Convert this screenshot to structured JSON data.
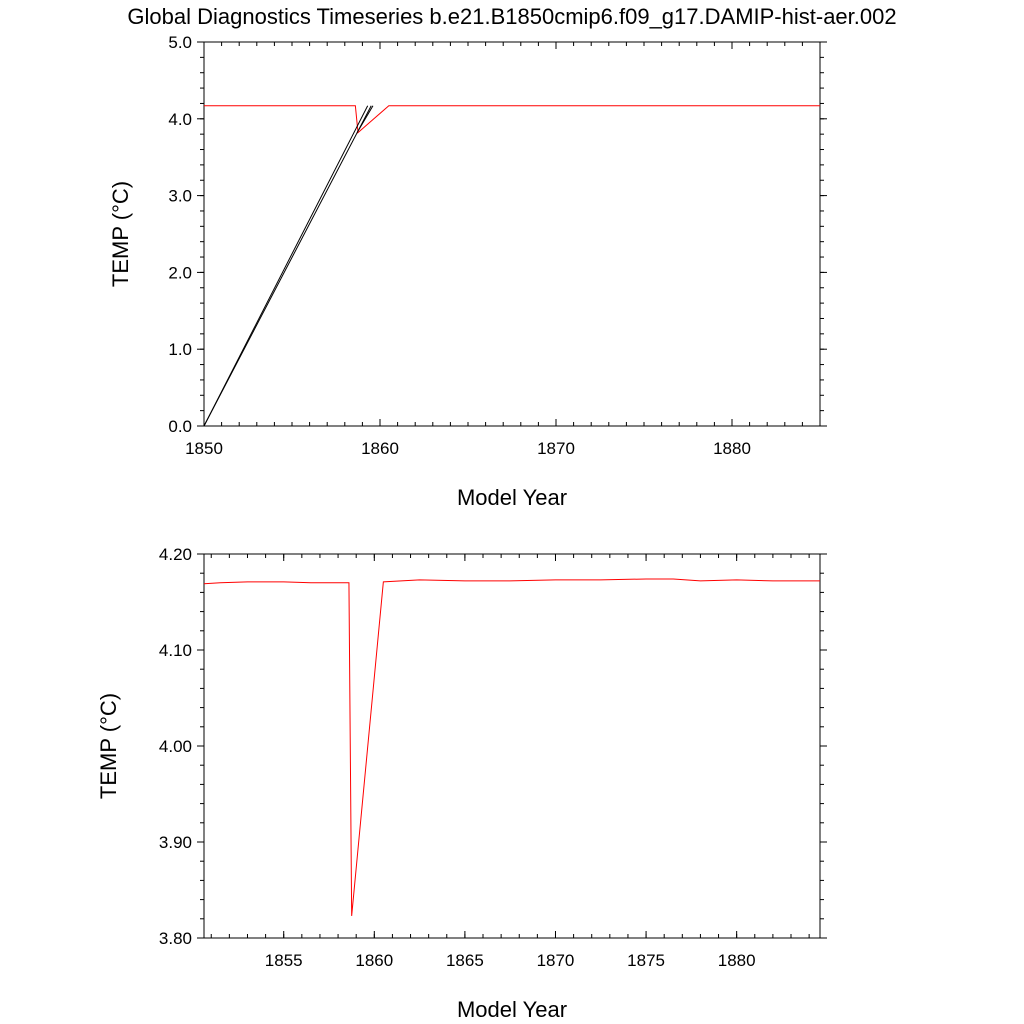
{
  "title": "Global Diagnostics Timeseries b.e21.B1850cmip6.f09_g17.DAMIP-hist-aer.002",
  "chart_data": [
    {
      "type": "line",
      "xlabel": "Model Year",
      "ylabel": "TEMP (°C)",
      "xlim": [
        1850,
        1885
      ],
      "ylim": [
        0,
        5
      ],
      "xticks": [
        1850,
        1860,
        1870,
        1880
      ],
      "xtick_labels": [
        "1850",
        "1860",
        "1870",
        "1880"
      ],
      "yticks": [
        0,
        1,
        2,
        3,
        4,
        5
      ],
      "ytick_labels": [
        "0.0",
        "1.0",
        "2.0",
        "3.0",
        "4.0",
        "5.0"
      ],
      "grid": false,
      "series": [
        {
          "color": "#ff0000",
          "x": [
            1850.0,
            1851.0,
            1852.0,
            1853.0,
            1854.0,
            1855.0,
            1856.0,
            1857.0,
            1858.0,
            1858.6,
            1858.75,
            1859.4,
            1860.5,
            1862.0,
            1865.0,
            1870.0,
            1875.0,
            1880.0,
            1885.0
          ],
          "y": [
            4.17,
            4.17,
            4.17,
            4.17,
            4.17,
            4.17,
            4.17,
            4.17,
            4.17,
            4.17,
            3.82,
            3.95,
            4.17,
            4.17,
            4.17,
            4.17,
            4.17,
            4.17,
            4.17
          ]
        },
        {
          "color": "#000000",
          "x": [
            1850.0,
            1859.3
          ],
          "y": [
            0.0,
            4.17
          ]
        },
        {
          "color": "#000000",
          "x": [
            1850.0,
            1859.5
          ],
          "y": [
            0.0,
            4.17
          ]
        },
        {
          "color": "#000000",
          "x": [
            1858.7,
            1859.6
          ],
          "y": [
            3.82,
            4.17
          ]
        }
      ]
    },
    {
      "type": "line",
      "xlabel": "Model Year",
      "ylabel": "TEMP (°C)",
      "xlim": [
        1850.6,
        1884.6
      ],
      "ylim": [
        3.8,
        4.2
      ],
      "xticks": [
        1855,
        1860,
        1865,
        1870,
        1875,
        1880
      ],
      "xtick_labels": [
        "1855",
        "1860",
        "1865",
        "1870",
        "1875",
        "1880"
      ],
      "yticks": [
        3.8,
        3.9,
        4.0,
        4.1,
        4.2
      ],
      "ytick_labels": [
        "3.80",
        "3.90",
        "4.00",
        "4.10",
        "4.20"
      ],
      "grid": false,
      "series": [
        {
          "color": "#ff0000",
          "x": [
            1850.6,
            1851.5,
            1853.0,
            1855.0,
            1856.5,
            1858.6,
            1858.75,
            1860.5,
            1862.5,
            1865.0,
            1867.5,
            1870.0,
            1872.5,
            1875.0,
            1876.5,
            1878.0,
            1880.0,
            1882.0,
            1884.6
          ],
          "y": [
            4.169,
            4.17,
            4.171,
            4.171,
            4.17,
            4.17,
            3.823,
            4.171,
            4.173,
            4.172,
            4.172,
            4.173,
            4.173,
            4.174,
            4.174,
            4.172,
            4.173,
            4.172,
            4.172
          ]
        }
      ]
    }
  ]
}
